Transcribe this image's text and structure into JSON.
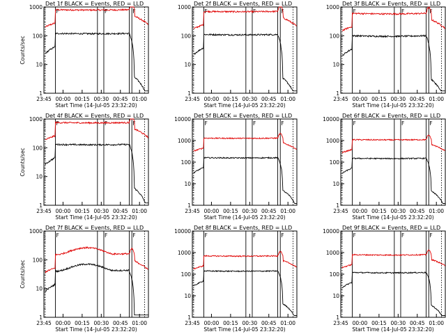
{
  "colors": {
    "events": "#000000",
    "lld": "#e00000",
    "frame": "#000000",
    "background": "#ffffff"
  },
  "chart_data": [
    {
      "type": "line",
      "title": "Det 1f BLACK = Events, RED = LLD",
      "xlabel": "Start Time (14-Jul-05 23:32:20)",
      "ylabel": "Counts/sec",
      "yscale": "log",
      "ylim": [
        1,
        1000
      ],
      "yticks": [
        1,
        10,
        100,
        1000
      ],
      "ytick_labels": [
        "1",
        "10",
        "100",
        "1000"
      ],
      "xlim": [
        13,
        95
      ],
      "xticks": [
        13,
        28,
        43,
        58,
        73,
        88
      ],
      "xtick_labels": [
        "23:45",
        "00:00",
        "00:15",
        "00:30",
        "00:45",
        "01:00"
      ],
      "vlines": [
        {
          "t": 14,
          "style": "dotted"
        },
        {
          "t": 22,
          "style": "solid",
          "flag": "F"
        },
        {
          "t": 55,
          "style": "solid"
        },
        {
          "t": 60,
          "style": "solid",
          "flag": "F"
        },
        {
          "t": 80,
          "style": "solid"
        },
        {
          "t": 82,
          "style": "solid",
          "flag": "F"
        },
        {
          "t": 92,
          "style": "dotted"
        }
      ],
      "events_base": 120,
      "lld_base": 800,
      "dip": 1.0,
      "hump": 1.0
    },
    {
      "type": "line",
      "title": "Det 2f BLACK = Events, RED = LLD",
      "xlabel": "Start Time (14-Jul-05 23:32:20)",
      "ylabel": "",
      "yscale": "log",
      "ylim": [
        1,
        1000
      ],
      "yticks": [
        1,
        10,
        100,
        1000
      ],
      "ytick_labels": [
        "1",
        "10",
        "100",
        "1000"
      ],
      "xlim": [
        13,
        95
      ],
      "xticks": [
        13,
        28,
        43,
        58,
        73,
        88
      ],
      "xtick_labels": [
        "23:45",
        "00:00",
        "00:15",
        "00:30",
        "00:45",
        "01:00"
      ],
      "vlines": [
        {
          "t": 14,
          "style": "dotted"
        },
        {
          "t": 22,
          "style": "solid",
          "flag": "F"
        },
        {
          "t": 55,
          "style": "solid"
        },
        {
          "t": 60,
          "style": "solid",
          "flag": "F"
        },
        {
          "t": 80,
          "style": "solid"
        },
        {
          "t": 82,
          "style": "solid",
          "flag": "F"
        },
        {
          "t": 92,
          "style": "dotted"
        }
      ],
      "events_base": 110,
      "lld_base": 700,
      "dip": 1.0,
      "hump": 1.0
    },
    {
      "type": "line",
      "title": "Det 3f BLACK = Events, RED = LLD",
      "xlabel": "Start Time (14-Jul-05 23:32:20)",
      "ylabel": "",
      "yscale": "log",
      "ylim": [
        1,
        1000
      ],
      "yticks": [
        1,
        10,
        100,
        1000
      ],
      "ytick_labels": [
        "1",
        "10",
        "100",
        "1000"
      ],
      "xlim": [
        13,
        95
      ],
      "xticks": [
        13,
        28,
        43,
        58,
        73,
        88
      ],
      "xtick_labels": [
        "23:45",
        "00:00",
        "00:15",
        "00:30",
        "00:45",
        "01:00"
      ],
      "vlines": [
        {
          "t": 14,
          "style": "dotted"
        },
        {
          "t": 22,
          "style": "solid",
          "flag": "F"
        },
        {
          "t": 55,
          "style": "solid"
        },
        {
          "t": 60,
          "style": "solid",
          "flag": "F"
        },
        {
          "t": 80,
          "style": "solid"
        },
        {
          "t": 82,
          "style": "solid",
          "flag": "F"
        },
        {
          "t": 92,
          "style": "dotted"
        }
      ],
      "events_base": 100,
      "lld_base": 600,
      "dip": 0.85,
      "hump": 1.0
    },
    {
      "type": "line",
      "title": "Det 4f BLACK = Events, RED = LLD",
      "xlabel": "Start Time (14-Jul-05 23:32:20)",
      "ylabel": "Counts/sec",
      "yscale": "log",
      "ylim": [
        1,
        1000
      ],
      "yticks": [
        1,
        10,
        100,
        1000
      ],
      "ytick_labels": [
        "1",
        "10",
        "100",
        "1000"
      ],
      "xlim": [
        13,
        95
      ],
      "xticks": [
        13,
        28,
        43,
        58,
        73,
        88
      ],
      "xtick_labels": [
        "23:45",
        "00:00",
        "00:15",
        "00:30",
        "00:45",
        "01:00"
      ],
      "vlines": [
        {
          "t": 14,
          "style": "dotted"
        },
        {
          "t": 22,
          "style": "solid",
          "flag": "F"
        },
        {
          "t": 55,
          "style": "solid"
        },
        {
          "t": 60,
          "style": "solid",
          "flag": "F"
        },
        {
          "t": 80,
          "style": "solid"
        },
        {
          "t": 82,
          "style": "solid",
          "flag": "F"
        },
        {
          "t": 92,
          "style": "dotted"
        }
      ],
      "events_base": 130,
      "lld_base": 750,
      "dip": 1.0,
      "hump": 1.0
    },
    {
      "type": "line",
      "title": "Det 5f BLACK = Events, RED = LLD",
      "xlabel": "Start Time (14-Jul-05 23:32:20)",
      "ylabel": "",
      "yscale": "log",
      "ylim": [
        1,
        10000
      ],
      "yticks": [
        1,
        10,
        100,
        1000,
        10000
      ],
      "ytick_labels": [
        "1",
        "10",
        "100",
        "1000",
        "10000"
      ],
      "xlim": [
        13,
        95
      ],
      "xticks": [
        13,
        28,
        43,
        58,
        73,
        88
      ],
      "xtick_labels": [
        "23:45",
        "00:00",
        "00:15",
        "00:30",
        "00:45",
        "01:00"
      ],
      "vlines": [
        {
          "t": 14,
          "style": "dotted"
        },
        {
          "t": 22,
          "style": "solid",
          "flag": "F"
        },
        {
          "t": 55,
          "style": "solid"
        },
        {
          "t": 60,
          "style": "solid",
          "flag": "F"
        },
        {
          "t": 80,
          "style": "solid"
        },
        {
          "t": 82,
          "style": "solid",
          "flag": "F"
        },
        {
          "t": 92,
          "style": "dotted"
        }
      ],
      "events_base": 160,
      "lld_base": 1300,
      "dip": 1.0,
      "hump": 1.0
    },
    {
      "type": "line",
      "title": "Det 6f BLACK = Events, RED = LLD",
      "xlabel": "Start Time (14-Jul-05 23:32:20)",
      "ylabel": "",
      "yscale": "log",
      "ylim": [
        1,
        10000
      ],
      "yticks": [
        1,
        10,
        100,
        1000,
        10000
      ],
      "ytick_labels": [
        "1",
        "10",
        "100",
        "1000",
        "10000"
      ],
      "xlim": [
        13,
        95
      ],
      "xticks": [
        13,
        28,
        43,
        58,
        73,
        88
      ],
      "xtick_labels": [
        "23:45",
        "00:00",
        "00:15",
        "00:30",
        "00:45",
        "01:00"
      ],
      "vlines": [
        {
          "t": 14,
          "style": "dotted"
        },
        {
          "t": 22,
          "style": "solid",
          "flag": "F"
        },
        {
          "t": 55,
          "style": "solid"
        },
        {
          "t": 60,
          "style": "solid",
          "flag": "F"
        },
        {
          "t": 80,
          "style": "solid"
        },
        {
          "t": 82,
          "style": "solid",
          "flag": "F"
        },
        {
          "t": 92,
          "style": "dotted"
        }
      ],
      "events_base": 150,
      "lld_base": 1100,
      "dip": 1.0,
      "hump": 1.0
    },
    {
      "type": "line",
      "title": "Det 7f BLACK = Events, RED = LLD",
      "xlabel": "Start Time (14-Jul-05 23:32:20)",
      "ylabel": "Counts/sec",
      "yscale": "log",
      "ylim": [
        1,
        1000
      ],
      "yticks": [
        1,
        10,
        100,
        1000
      ],
      "ytick_labels": [
        "1",
        "10",
        "100",
        "1000"
      ],
      "xlim": [
        13,
        95
      ],
      "xticks": [
        13,
        28,
        43,
        58,
        73,
        88
      ],
      "xtick_labels": [
        "23:45",
        "00:00",
        "00:15",
        "00:30",
        "00:45",
        "01:00"
      ],
      "vlines": [
        {
          "t": 14,
          "style": "dotted"
        },
        {
          "t": 22,
          "style": "solid",
          "flag": "F"
        },
        {
          "t": 55,
          "style": "solid"
        },
        {
          "t": 60,
          "style": "solid",
          "flag": "F"
        },
        {
          "t": 80,
          "style": "solid"
        },
        {
          "t": 82,
          "style": "solid",
          "flag": "F"
        },
        {
          "t": 92,
          "style": "dotted"
        }
      ],
      "events_base": 40,
      "lld_base": 150,
      "dip": 1.0,
      "hump": 1.8
    },
    {
      "type": "line",
      "title": "Det 8f BLACK = Events, RED = LLD",
      "xlabel": "Start Time (14-Jul-05 23:32:20)",
      "ylabel": "",
      "yscale": "log",
      "ylim": [
        1,
        10000
      ],
      "yticks": [
        1,
        10,
        100,
        1000,
        10000
      ],
      "ytick_labels": [
        "1",
        "10",
        "100",
        "1000",
        "10000"
      ],
      "xlim": [
        13,
        95
      ],
      "xticks": [
        13,
        28,
        43,
        58,
        73,
        88
      ],
      "xtick_labels": [
        "23:45",
        "00:00",
        "00:15",
        "00:30",
        "00:45",
        "01:00"
      ],
      "vlines": [
        {
          "t": 14,
          "style": "dotted"
        },
        {
          "t": 22,
          "style": "solid",
          "flag": "F"
        },
        {
          "t": 55,
          "style": "solid"
        },
        {
          "t": 60,
          "style": "solid",
          "flag": "F"
        },
        {
          "t": 80,
          "style": "solid"
        },
        {
          "t": 82,
          "style": "solid",
          "flag": "F"
        },
        {
          "t": 92,
          "style": "dotted"
        }
      ],
      "events_base": 140,
      "lld_base": 700,
      "dip": 1.0,
      "hump": 1.0
    },
    {
      "type": "line",
      "title": "Det 9f BLACK = Events, RED = LLD",
      "xlabel": "Start Time (14-Jul-05 23:32:20)",
      "ylabel": "",
      "yscale": "log",
      "ylim": [
        1,
        10000
      ],
      "yticks": [
        1,
        10,
        100,
        1000,
        10000
      ],
      "ytick_labels": [
        "1",
        "10",
        "100",
        "1000",
        "10000"
      ],
      "xlim": [
        13,
        95
      ],
      "xticks": [
        13,
        28,
        43,
        58,
        73,
        88
      ],
      "xtick_labels": [
        "23:45",
        "00:00",
        "00:15",
        "00:30",
        "00:45",
        "01:00"
      ],
      "vlines": [
        {
          "t": 14,
          "style": "dotted"
        },
        {
          "t": 22,
          "style": "solid",
          "flag": "F"
        },
        {
          "t": 55,
          "style": "solid"
        },
        {
          "t": 60,
          "style": "solid",
          "flag": "F"
        },
        {
          "t": 80,
          "style": "solid"
        },
        {
          "t": 82,
          "style": "solid",
          "flag": "F"
        },
        {
          "t": 92,
          "style": "dotted"
        }
      ],
      "events_base": 120,
      "lld_base": 800,
      "dip": 0.9,
      "hump": 1.0
    }
  ]
}
